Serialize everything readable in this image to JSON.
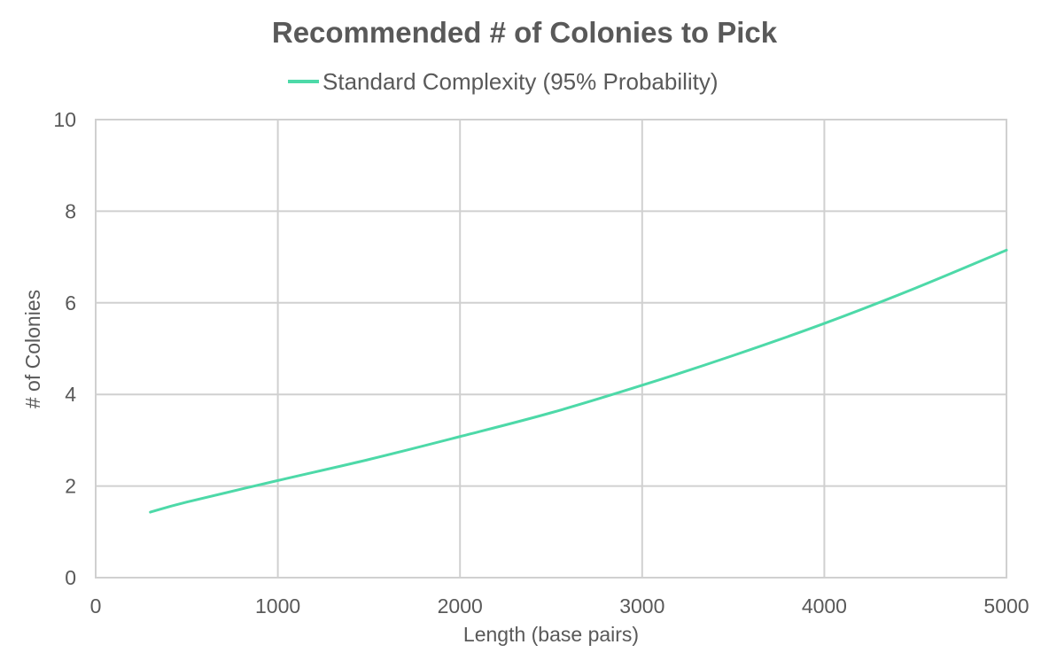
{
  "chart_data": {
    "type": "line",
    "title": "Recommended # of Colonies to Pick",
    "xlabel": "Length (base pairs)",
    "ylabel": "# of Colonies",
    "xlim": [
      0,
      5000
    ],
    "ylim": [
      0,
      10
    ],
    "x_ticks": [
      "0",
      "1000",
      "2000",
      "3000",
      "4000",
      "5000"
    ],
    "y_ticks": [
      "0",
      "2",
      "4",
      "6",
      "8",
      "10"
    ],
    "grid": true,
    "legend_position": "top",
    "series": [
      {
        "name": "Standard Complexity (95% Probability)",
        "color": "#4dd9a8",
        "x": [
          300,
          500,
          1000,
          1500,
          2000,
          2500,
          3000,
          3500,
          4000,
          4500,
          5000
        ],
        "y": [
          1.43,
          1.65,
          2.12,
          2.58,
          3.08,
          3.6,
          4.2,
          4.85,
          5.55,
          6.32,
          7.15
        ]
      }
    ]
  }
}
